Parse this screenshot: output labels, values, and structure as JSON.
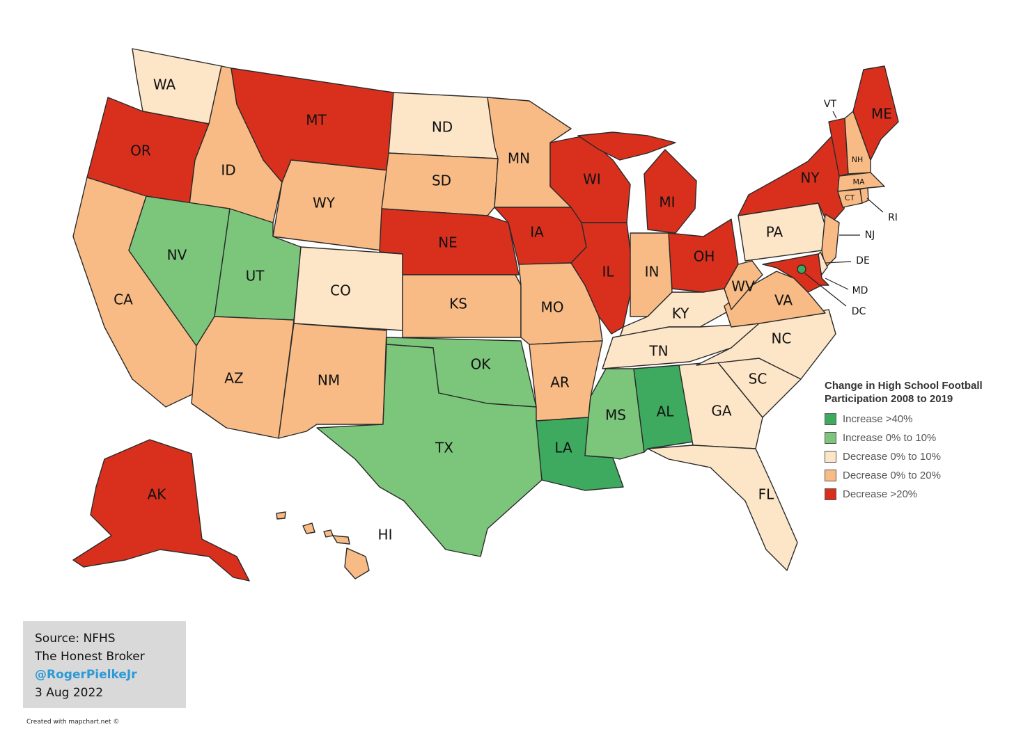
{
  "legend": {
    "title_line1": "Change in High School Football",
    "title_line2": "Participation 2008 to 2019",
    "items": [
      {
        "label": "Increase >40%",
        "color": "#3daa5f"
      },
      {
        "label": "Increase 0% to 10%",
        "color": "#7cc67c"
      },
      {
        "label": "Decrease 0% to 10%",
        "color": "#fde5c8"
      },
      {
        "label": "Decrease 0% to 20%",
        "color": "#f8bb85"
      },
      {
        "label": "Decrease >20%",
        "color": "#d9301e"
      }
    ]
  },
  "states": {
    "WA": "Decrease 0% to 10%",
    "OR": "Decrease >20%",
    "CA": "Decrease 0% to 20%",
    "ID": "Decrease 0% to 20%",
    "NV": "Increase 0% to 10%",
    "UT": "Increase 0% to 10%",
    "AZ": "Decrease 0% to 20%",
    "MT": "Decrease >20%",
    "WY": "Decrease 0% to 20%",
    "CO": "Decrease 0% to 10%",
    "NM": "Decrease 0% to 20%",
    "ND": "Decrease 0% to 10%",
    "SD": "Decrease 0% to 20%",
    "NE": "Decrease >20%",
    "KS": "Decrease 0% to 20%",
    "OK": "Increase 0% to 10%",
    "TX": "Increase 0% to 10%",
    "MN": "Decrease 0% to 20%",
    "IA": "Decrease >20%",
    "MO": "Decrease 0% to 20%",
    "AR": "Decrease 0% to 20%",
    "LA": "Increase >40%",
    "WI": "Decrease >20%",
    "IL": "Decrease >20%",
    "MS": "Increase 0% to 10%",
    "MI": "Decrease >20%",
    "IN": "Decrease 0% to 20%",
    "OH": "Decrease >20%",
    "KY": "Decrease 0% to 10%",
    "TN": "Decrease 0% to 10%",
    "AL": "Increase >40%",
    "GA": "Decrease 0% to 10%",
    "FL": "Decrease 0% to 10%",
    "SC": "Decrease 0% to 10%",
    "NC": "Decrease 0% to 10%",
    "VA": "Decrease 0% to 20%",
    "WV": "Decrease 0% to 20%",
    "PA": "Decrease 0% to 10%",
    "NY": "Decrease >20%",
    "NJ": "Decrease 0% to 20%",
    "DE": "Decrease 0% to 10%",
    "MD": "Decrease >20%",
    "DC": "Increase >40%",
    "CT": "Decrease 0% to 20%",
    "RI": "Decrease 0% to 20%",
    "MA": "Decrease 0% to 20%",
    "VT": "Decrease >20%",
    "NH": "Decrease 0% to 20%",
    "ME": "Decrease >20%",
    "AK": "Decrease >20%",
    "HI": "Decrease 0% to 20%"
  },
  "credits": {
    "line1": "Source: NFHS",
    "line2": "The Honest Broker",
    "handle": "@RogerPielkeJr",
    "date": "3 Aug 2022"
  },
  "footer": "Created with mapchart.net ©"
}
